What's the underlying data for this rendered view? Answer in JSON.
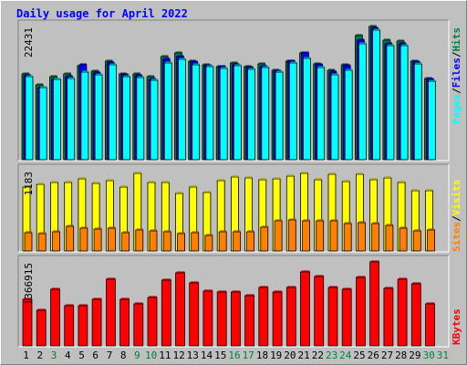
{
  "title": "Daily usage for April 2022",
  "colors": {
    "background": "#c0c0c0",
    "title": "#0000ff",
    "hits": "#008040",
    "files": "#0000ff",
    "pages": "#00ffff",
    "visits": "#ffff00",
    "sites": "#ff8000",
    "kbytes": "#ff0000",
    "weekday": "#000000",
    "weekend": "#008040"
  },
  "chart_data": [
    {
      "type": "bar",
      "panel": "hits-files-pages",
      "y_tick_label": "22431",
      "ylim": [
        0,
        22431
      ],
      "legend": [
        "Hits",
        "Files",
        "Pages"
      ],
      "categories": [
        "1",
        "2",
        "3",
        "4",
        "5",
        "6",
        "7",
        "8",
        "9",
        "10",
        "11",
        "12",
        "13",
        "14",
        "15",
        "16",
        "17",
        "18",
        "19",
        "20",
        "21",
        "22",
        "23",
        "24",
        "25",
        "26",
        "27",
        "28",
        "29",
        "30",
        "31"
      ],
      "series": [
        {
          "name": "Hits",
          "values": [
            14300,
            12400,
            13800,
            14300,
            15600,
            14700,
            16400,
            14300,
            14200,
            13800,
            17100,
            17800,
            16400,
            15800,
            15500,
            16000,
            15400,
            15900,
            14900,
            16400,
            17800,
            15900,
            14800,
            15800,
            20600,
            22200,
            19800,
            19700,
            16400,
            13500,
            0
          ]
        },
        {
          "name": "Files",
          "values": [
            13900,
            12000,
            13400,
            13800,
            15700,
            14400,
            16100,
            14100,
            14000,
            13400,
            16600,
            17100,
            16200,
            15600,
            15400,
            15800,
            15300,
            15500,
            14700,
            16300,
            17800,
            15700,
            14500,
            15600,
            19800,
            21800,
            19200,
            19300,
            16200,
            13300,
            0
          ]
        },
        {
          "name": "Pages",
          "values": [
            13800,
            11900,
            13300,
            13500,
            14600,
            14100,
            15700,
            13800,
            13700,
            13200,
            16100,
            16700,
            15800,
            15400,
            15100,
            15600,
            15000,
            15300,
            14500,
            16000,
            16800,
            15300,
            14100,
            14900,
            19200,
            21500,
            18900,
            18900,
            15900,
            13100,
            0
          ]
        }
      ]
    },
    {
      "type": "bar",
      "panel": "visits-sites",
      "y_tick_label": "1183",
      "ylim": [
        0,
        1183
      ],
      "legend": [
        "Visits",
        "Sites"
      ],
      "categories": [
        "1",
        "2",
        "3",
        "4",
        "5",
        "6",
        "7",
        "8",
        "9",
        "10",
        "11",
        "12",
        "13",
        "14",
        "15",
        "16",
        "17",
        "18",
        "19",
        "20",
        "21",
        "22",
        "23",
        "24",
        "25",
        "26",
        "27",
        "28",
        "29",
        "30",
        "31"
      ],
      "series": [
        {
          "name": "Visits",
          "values": [
            920,
            960,
            980,
            980,
            1040,
            970,
            1010,
            920,
            1120,
            990,
            990,
            830,
            920,
            840,
            1010,
            1060,
            1050,
            1030,
            1040,
            1080,
            1120,
            1030,
            1110,
            1000,
            1100,
            1020,
            1050,
            980,
            870,
            870,
            0
          ]
        },
        {
          "name": "Sites",
          "values": [
            260,
            250,
            270,
            360,
            330,
            310,
            330,
            260,
            300,
            290,
            280,
            250,
            260,
            230,
            270,
            280,
            270,
            340,
            440,
            450,
            430,
            440,
            430,
            400,
            410,
            400,
            370,
            330,
            290,
            300,
            0
          ]
        }
      ]
    },
    {
      "type": "bar",
      "panel": "kbytes",
      "y_tick_label": "1366915",
      "ylim": [
        0,
        1366915
      ],
      "legend": [
        "KBytes"
      ],
      "categories": [
        "1",
        "2",
        "3",
        "4",
        "5",
        "6",
        "7",
        "8",
        "9",
        "10",
        "11",
        "12",
        "13",
        "14",
        "15",
        "16",
        "17",
        "18",
        "19",
        "20",
        "21",
        "22",
        "23",
        "24",
        "25",
        "26",
        "27",
        "28",
        "29",
        "30",
        "31"
      ],
      "series": [
        {
          "name": "KBytes",
          "values": [
            730,
            560,
            900,
            630,
            630,
            740,
            1050,
            730,
            660,
            760,
            1040,
            1160,
            990,
            870,
            850,
            850,
            800,
            920,
            850,
            930,
            1170,
            1100,
            920,
            900,
            1080,
            1330,
            910,
            1050,
            980,
            670,
            0
          ]
        }
      ]
    }
  ],
  "day_labels": [
    "1",
    "2",
    "3",
    "4",
    "5",
    "6",
    "7",
    "8",
    "9",
    "10",
    "11",
    "12",
    "13",
    "14",
    "15",
    "16",
    "17",
    "18",
    "19",
    "20",
    "21",
    "22",
    "23",
    "24",
    "25",
    "26",
    "27",
    "28",
    "29",
    "30",
    "31"
  ],
  "weekend_days": [
    "3",
    "9",
    "10",
    "16",
    "17",
    "23",
    "24",
    "30",
    "31"
  ],
  "side_labels": {
    "top": [
      "Pages",
      "Files",
      "Hits"
    ],
    "middle": [
      "Sites",
      "Visits"
    ],
    "bottom": [
      "KBytes"
    ],
    "separator": "/"
  }
}
